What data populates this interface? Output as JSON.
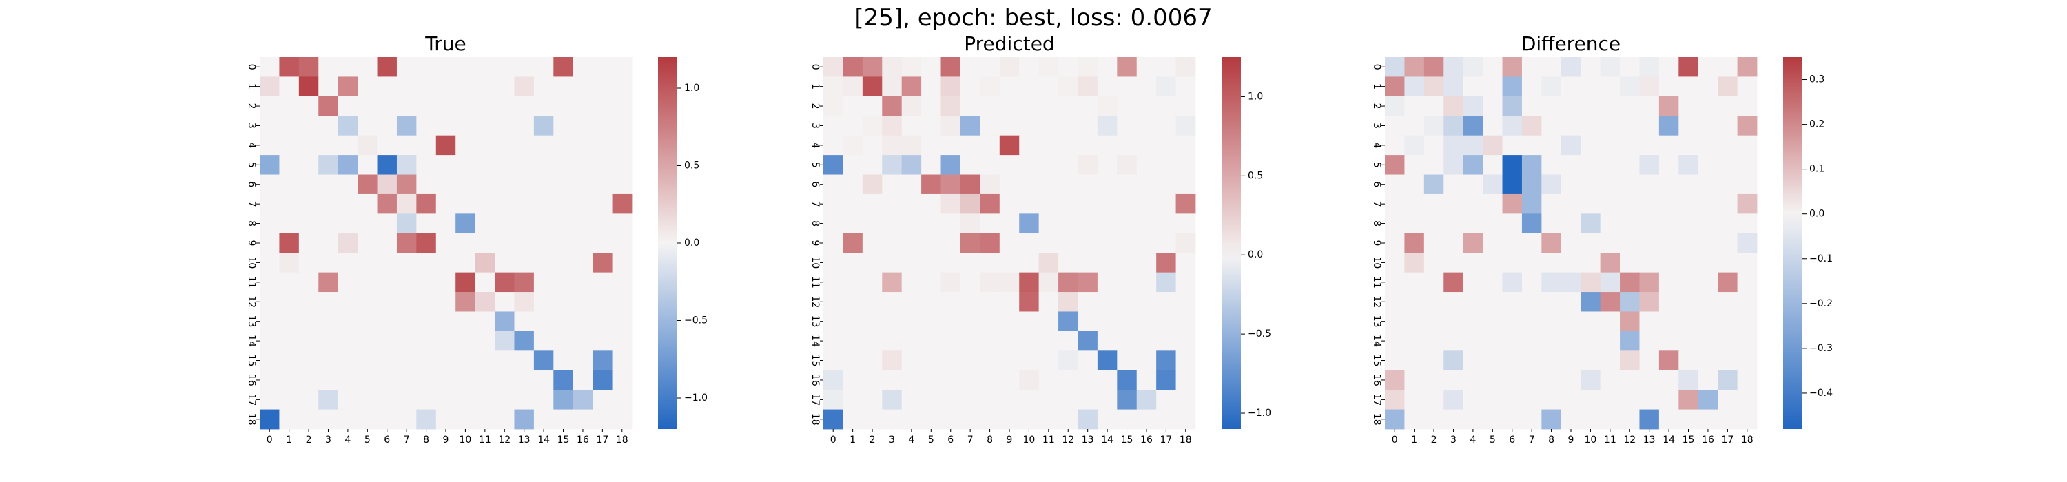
{
  "suptitle": "[25], epoch: best, loss: 0.0067",
  "colors": {
    "negative": "#2166c0",
    "neutral": "#f5f3f3",
    "positive": "#b43a3f"
  },
  "chart_data": [
    {
      "type": "heatmap",
      "title": "True",
      "xlabels": [
        "0",
        "1",
        "2",
        "3",
        "4",
        "5",
        "6",
        "7",
        "8",
        "9",
        "10",
        "11",
        "12",
        "13",
        "14",
        "15",
        "16",
        "17",
        "18"
      ],
      "ylabels": [
        "0",
        "1",
        "2",
        "3",
        "4",
        "5",
        "6",
        "7",
        "8",
        "9",
        "10",
        "11",
        "12",
        "13",
        "14",
        "15",
        "16",
        "17",
        "18"
      ],
      "vmin": -1.2,
      "vmax": 1.2,
      "colorbar_ticks": [
        -1.0,
        -0.5,
        0.0,
        0.5,
        1.0
      ],
      "colorbar_tick_labels": [
        "−1.0",
        "−0.5",
        "0.0",
        "0.5",
        "1.0"
      ],
      "values": [
        [
          0,
          1,
          0.9,
          0,
          0,
          0,
          1.05,
          0,
          0,
          0,
          0,
          0,
          0,
          0,
          0,
          1.0,
          0,
          0,
          0
        ],
        [
          0.15,
          0,
          1.15,
          0,
          0.7,
          0,
          0,
          0,
          0,
          0,
          0,
          0,
          0,
          0.12,
          0,
          0,
          0,
          0,
          0
        ],
        [
          0,
          0,
          0,
          0.8,
          0,
          0,
          0,
          0,
          0,
          0,
          0,
          0,
          0,
          0,
          0,
          0,
          0,
          0,
          0
        ],
        [
          0,
          0,
          0,
          0,
          -0.3,
          0,
          0,
          -0.45,
          0,
          0,
          0,
          0,
          0,
          0,
          -0.35,
          0,
          0,
          0,
          0
        ],
        [
          0,
          0,
          0,
          0,
          0,
          0.05,
          0,
          0,
          0,
          1.05,
          0,
          0,
          0,
          0,
          0,
          0,
          0,
          0,
          0
        ],
        [
          -0.6,
          0,
          0,
          -0.25,
          -0.55,
          0,
          -1.1,
          -0.2,
          0,
          0,
          0,
          0,
          0,
          0,
          0,
          0,
          0,
          0,
          0
        ],
        [
          0,
          0,
          0,
          0,
          0,
          0.8,
          0.2,
          0.7,
          0,
          0,
          0,
          0,
          0,
          0,
          0,
          0,
          0,
          0,
          0
        ],
        [
          0,
          0,
          0,
          0,
          0,
          0,
          0.75,
          0.1,
          0.85,
          0,
          0,
          0,
          0,
          0,
          0,
          0,
          0,
          0,
          0.9
        ],
        [
          0,
          0,
          0,
          0,
          0,
          0,
          0,
          -0.25,
          0,
          0,
          -0.7,
          0,
          0,
          0,
          0,
          0,
          0,
          0,
          0
        ],
        [
          0,
          1.0,
          0,
          0,
          0.15,
          0,
          0,
          0.8,
          1.0,
          0,
          0,
          0,
          0,
          0,
          0,
          0,
          0,
          0,
          0
        ],
        [
          0,
          0.05,
          0,
          0,
          0,
          0,
          0,
          0,
          0,
          0,
          0,
          0.3,
          0,
          0,
          0,
          0,
          0,
          0.85,
          0
        ],
        [
          0,
          0,
          0,
          0.7,
          0,
          0,
          0,
          0,
          0,
          0,
          1.05,
          0,
          0.95,
          0.85,
          0,
          0,
          0,
          0,
          0
        ],
        [
          0,
          0,
          0,
          0,
          0,
          0,
          0,
          0,
          0,
          0,
          0.65,
          0.2,
          0,
          0.1,
          0,
          0,
          0,
          0,
          0
        ],
        [
          0,
          0,
          0,
          0,
          0,
          0,
          0,
          0,
          0,
          0,
          0,
          0,
          -0.55,
          0,
          0,
          0,
          0,
          0,
          0
        ],
        [
          0,
          0,
          0,
          0,
          0,
          0,
          0,
          0,
          0,
          0,
          0,
          0,
          -0.2,
          -0.75,
          0,
          0,
          0,
          0,
          0
        ],
        [
          0,
          0,
          0,
          0,
          0,
          0,
          0,
          0,
          0,
          0,
          0,
          0,
          0,
          0,
          -0.85,
          0,
          0,
          -0.8,
          0
        ],
        [
          0,
          0,
          0,
          0,
          0,
          0,
          0,
          0,
          0,
          0,
          0,
          0,
          0,
          0,
          0,
          -0.9,
          0,
          -0.95,
          0
        ],
        [
          0,
          0,
          0,
          -0.2,
          0,
          0,
          0,
          0,
          0,
          0,
          0,
          0,
          0,
          0,
          0,
          -0.6,
          -0.4,
          0,
          0
        ],
        [
          -1.15,
          0,
          0,
          0,
          0,
          0,
          0,
          0,
          -0.2,
          0,
          0,
          0,
          0,
          -0.55,
          0,
          0,
          0,
          0,
          0
        ]
      ]
    },
    {
      "type": "heatmap",
      "title": "Predicted",
      "xlabels": [
        "0",
        "1",
        "2",
        "3",
        "4",
        "5",
        "6",
        "7",
        "8",
        "9",
        "10",
        "11",
        "12",
        "13",
        "14",
        "15",
        "16",
        "17",
        "18"
      ],
      "ylabels": [
        "0",
        "1",
        "2",
        "3",
        "4",
        "5",
        "6",
        "7",
        "8",
        "9",
        "10",
        "11",
        "12",
        "13",
        "14",
        "15",
        "16",
        "17",
        "18"
      ],
      "vmin": -1.1,
      "vmax": 1.25,
      "colorbar_ticks": [
        -1.0,
        -0.5,
        0.0,
        0.5,
        1.0
      ],
      "colorbar_tick_labels": [
        "−1.0",
        "−0.5",
        "0.0",
        "0.5",
        "1.0"
      ],
      "values": [
        [
          0.1,
          0.85,
          0.7,
          0.05,
          0.02,
          0,
          0.9,
          0,
          0,
          0.05,
          0,
          0.02,
          0,
          0.02,
          0,
          0.65,
          0,
          0,
          0.05
        ],
        [
          0.02,
          0.05,
          1.1,
          0.05,
          0.7,
          0,
          0.2,
          0,
          0.02,
          0,
          0,
          0,
          0.02,
          0.1,
          0,
          0,
          0,
          -0.05,
          0
        ],
        [
          0.02,
          0,
          0,
          0.75,
          0.05,
          0,
          0.15,
          0,
          0,
          0,
          0,
          0,
          0,
          0,
          0.02,
          0,
          0,
          0,
          0
        ],
        [
          0,
          0,
          0.02,
          0.1,
          0,
          0,
          0.05,
          -0.5,
          0,
          0,
          0,
          0,
          0,
          0,
          -0.1,
          0,
          0,
          0,
          -0.05
        ],
        [
          0,
          0.02,
          0,
          0.05,
          0.05,
          0,
          0,
          0,
          0,
          1.1,
          0,
          0,
          0,
          0,
          0,
          0,
          0,
          0,
          0
        ],
        [
          -0.8,
          0,
          0,
          -0.2,
          -0.35,
          0,
          -0.6,
          0,
          0,
          0,
          0,
          0,
          0,
          0.05,
          0,
          0.05,
          0,
          0,
          0
        ],
        [
          0,
          0,
          0.15,
          0,
          0,
          0.85,
          0.7,
          0.9,
          0.05,
          0,
          0,
          0,
          0,
          0,
          0,
          0,
          0,
          0,
          0
        ],
        [
          0,
          0,
          0,
          0,
          0,
          0,
          0.1,
          0.3,
          0.85,
          0,
          0,
          0,
          0,
          0,
          0,
          0,
          0,
          0,
          0.8
        ],
        [
          0,
          0,
          0,
          0,
          0,
          0,
          0,
          0.05,
          0,
          0,
          -0.6,
          0,
          0,
          0,
          0,
          0,
          0,
          0,
          0
        ],
        [
          0,
          0.8,
          0,
          0,
          0,
          0,
          0,
          0.8,
          0.85,
          0,
          0,
          0,
          0,
          0,
          0,
          0,
          0,
          0,
          0.05
        ],
        [
          0,
          0,
          0,
          0,
          0,
          0,
          0,
          0,
          0,
          0,
          0,
          0.15,
          0,
          0,
          0,
          0,
          0,
          0.85,
          0
        ],
        [
          0,
          0,
          0,
          0.45,
          0,
          0,
          0.05,
          0,
          0.05,
          0.05,
          1.0,
          0.05,
          0.75,
          0.7,
          0,
          0,
          0,
          -0.2,
          0
        ],
        [
          0,
          0,
          0,
          0,
          0,
          0,
          0,
          0,
          0,
          0,
          0.95,
          0,
          0.15,
          0,
          0,
          0,
          0,
          0,
          0
        ],
        [
          0,
          0,
          0,
          0,
          0,
          0,
          0,
          0,
          0,
          0,
          0,
          0,
          -0.7,
          0,
          0,
          0,
          0,
          0,
          0
        ],
        [
          0,
          0,
          0,
          0,
          0,
          0,
          0,
          0,
          0,
          0,
          0,
          0,
          0,
          -0.75,
          0,
          0,
          0,
          0,
          0
        ],
        [
          0,
          0,
          0,
          0.1,
          0,
          0,
          0,
          0,
          0,
          0,
          0,
          0,
          -0.05,
          0,
          -0.9,
          0,
          0,
          -0.8,
          0
        ],
        [
          -0.1,
          0,
          0,
          0,
          0,
          0,
          0,
          0,
          0,
          0,
          0.05,
          0,
          0,
          0,
          0,
          -0.85,
          0,
          -0.85,
          0
        ],
        [
          -0.05,
          0,
          0,
          -0.15,
          0,
          0,
          0,
          0,
          0,
          0,
          0,
          0,
          0,
          0,
          0,
          -0.75,
          -0.2,
          0,
          0
        ],
        [
          -0.95,
          0,
          0,
          0,
          0,
          0,
          0,
          0,
          0,
          0,
          0,
          0,
          0,
          -0.2,
          0,
          0,
          0,
          0,
          0
        ]
      ]
    },
    {
      "type": "heatmap",
      "title": "Difference",
      "xlabels": [
        "0",
        "1",
        "2",
        "3",
        "4",
        "5",
        "6",
        "7",
        "8",
        "9",
        "10",
        "11",
        "12",
        "13",
        "14",
        "15",
        "16",
        "17",
        "18"
      ],
      "ylabels": [
        "0",
        "1",
        "2",
        "3",
        "4",
        "5",
        "6",
        "7",
        "8",
        "9",
        "10",
        "11",
        "12",
        "13",
        "14",
        "15",
        "16",
        "17",
        "18"
      ],
      "vmin": -0.48,
      "vmax": 0.35,
      "colorbar_ticks": [
        -0.4,
        -0.3,
        -0.2,
        -0.1,
        0.0,
        0.1,
        0.2,
        0.3
      ],
      "colorbar_tick_labels": [
        "−0.4",
        "−0.3",
        "−0.2",
        "−0.1",
        "0.0",
        "0.1",
        "0.2",
        "0.3"
      ],
      "values": [
        [
          -0.08,
          0.15,
          0.2,
          -0.05,
          -0.02,
          0,
          0.15,
          0,
          0,
          -0.05,
          0,
          -0.02,
          0,
          -0.02,
          0,
          0.3,
          0,
          0,
          0.15
        ],
        [
          0.2,
          -0.05,
          0.05,
          -0.05,
          0,
          0,
          -0.2,
          0,
          -0.02,
          0,
          0,
          0,
          -0.02,
          0.02,
          0,
          0,
          0,
          0.05,
          0
        ],
        [
          -0.02,
          0,
          0,
          0.05,
          -0.05,
          0,
          -0.15,
          0,
          0,
          0,
          0,
          0,
          0,
          0,
          0.15,
          0,
          0,
          0,
          0
        ],
        [
          0,
          0,
          -0.02,
          -0.1,
          -0.3,
          0,
          -0.05,
          0.05,
          0,
          0,
          0,
          0,
          0,
          0,
          -0.25,
          0,
          0,
          0,
          0.15
        ],
        [
          0,
          -0.02,
          0,
          -0.05,
          -0.05,
          0.05,
          0,
          0,
          0,
          -0.05,
          0,
          0,
          0,
          0,
          0,
          0,
          0,
          0,
          0
        ],
        [
          0.2,
          0,
          0,
          -0.05,
          -0.2,
          0,
          -0.5,
          -0.2,
          0,
          0,
          0,
          0,
          0,
          -0.05,
          0,
          -0.05,
          0,
          0,
          0
        ],
        [
          0,
          0,
          -0.15,
          0,
          0,
          -0.05,
          -0.5,
          -0.2,
          -0.05,
          0,
          0,
          0,
          0,
          0,
          0,
          0,
          0,
          0,
          0
        ],
        [
          0,
          0,
          0,
          0,
          0,
          0,
          0.15,
          -0.2,
          0,
          0,
          0,
          0,
          0,
          0,
          0,
          0,
          0,
          0,
          0.1
        ],
        [
          0,
          0,
          0,
          0,
          0,
          0,
          0,
          -0.3,
          0,
          0,
          -0.1,
          0,
          0,
          0,
          0,
          0,
          0,
          0,
          0
        ],
        [
          0,
          0.2,
          0,
          0,
          0.15,
          0,
          0,
          0,
          0.15,
          0,
          0,
          0,
          0,
          0,
          0,
          0,
          0,
          0,
          -0.05
        ],
        [
          0,
          0.05,
          0,
          0,
          0,
          0,
          0,
          0,
          0,
          0,
          0,
          0.15,
          0,
          0,
          0,
          0,
          0,
          0,
          0
        ],
        [
          0,
          0,
          0,
          0.25,
          0,
          0,
          -0.05,
          0,
          -0.05,
          -0.05,
          0.05,
          -0.05,
          0.2,
          0.15,
          0,
          0,
          0,
          0.2,
          0
        ],
        [
          0,
          0,
          0,
          0,
          0,
          0,
          0,
          0,
          0,
          0,
          -0.3,
          0.2,
          -0.15,
          0.1,
          0,
          0,
          0,
          0,
          0
        ],
        [
          0,
          0,
          0,
          0,
          0,
          0,
          0,
          0,
          0,
          0,
          0,
          0,
          0.15,
          0,
          0,
          0,
          0,
          0,
          0
        ],
        [
          0,
          0,
          0,
          0,
          0,
          0,
          0,
          0,
          0,
          0,
          0,
          0,
          -0.2,
          0,
          0,
          0,
          0,
          0,
          0
        ],
        [
          0,
          0,
          0,
          -0.1,
          0,
          0,
          0,
          0,
          0,
          0,
          0,
          0,
          0.05,
          0,
          0.2,
          0,
          0,
          0,
          0
        ],
        [
          0.1,
          0,
          0,
          0,
          0,
          0,
          0,
          0,
          0,
          0,
          -0.05,
          0,
          0,
          0,
          0,
          -0.05,
          0,
          -0.1,
          0
        ],
        [
          0.05,
          0,
          0,
          -0.05,
          0,
          0,
          0,
          0,
          0,
          0,
          0,
          0,
          0,
          0,
          0,
          0.15,
          -0.2,
          0,
          0
        ],
        [
          -0.2,
          0,
          0,
          0,
          0,
          0,
          0,
          0,
          -0.2,
          0,
          0,
          0,
          0,
          -0.35,
          0,
          0,
          0,
          0,
          0
        ]
      ]
    }
  ]
}
